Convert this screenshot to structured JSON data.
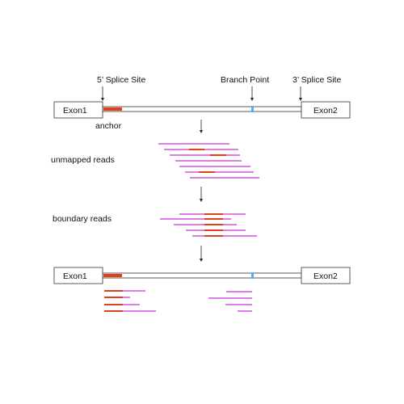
{
  "labels": {
    "five_prime_splice_site": "5’ Splice Site",
    "branch_point": "Branch Point",
    "three_prime_splice_site": "3’ Splice Site",
    "anchor": "anchor",
    "unmapped_reads": "unmapped reads",
    "boundary_reads": "boundary reads"
  },
  "exons": {
    "top_left": "Exon1",
    "top_right": "Exon2",
    "bottom_left": "Exon1",
    "bottom_right": "Exon2"
  },
  "colors": {
    "read": "#dc7ee8",
    "anchor": "#e0401e",
    "branch_point": "#5aa9f0",
    "outline": "#333333"
  }
}
